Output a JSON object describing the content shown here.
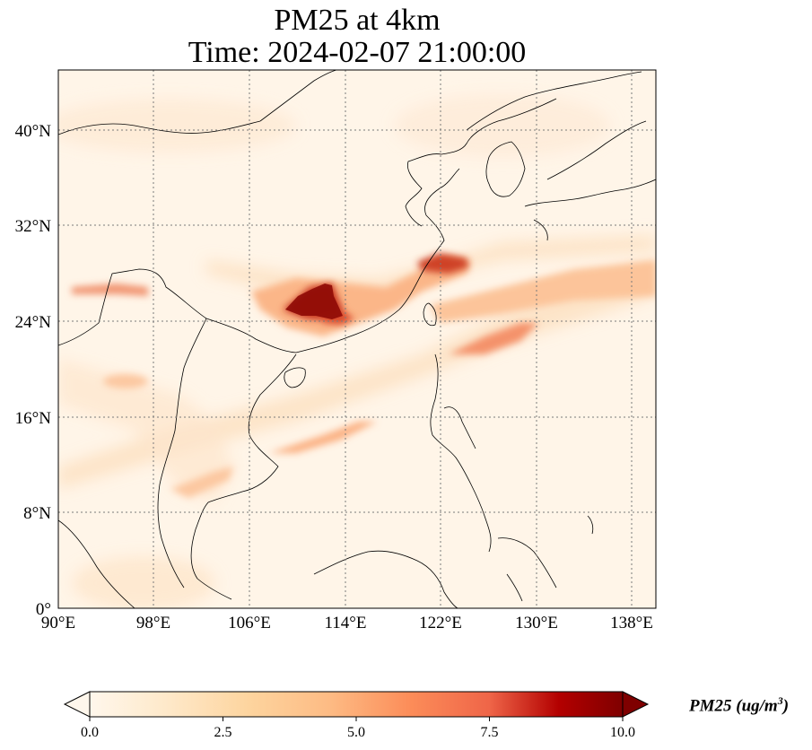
{
  "title": {
    "line1": "PM25 at 4km",
    "line2": "Time: 2024-02-07 21:00:00"
  },
  "map": {
    "lon_range": [
      90,
      140
    ],
    "lat_range": [
      0,
      45
    ],
    "lon_ticks": [
      "90°E",
      "98°E",
      "106°E",
      "114°E",
      "122°E",
      "130°E",
      "138°E"
    ],
    "lat_ticks": [
      "0°",
      "8°N",
      "16°N",
      "24°N",
      "32°N",
      "40°N"
    ],
    "gridlines": true,
    "colormap": "OrRd",
    "background_color": "#fff5e8",
    "coastline_color": "#000000"
  },
  "colorbar": {
    "ticks": [
      "0.0",
      "2.5",
      "5.0",
      "7.5",
      "10.0"
    ],
    "range": [
      0,
      10
    ],
    "extend": "both",
    "label_main": "PM25 (ug/m",
    "label_sup": "3",
    "label_end": ")"
  }
}
